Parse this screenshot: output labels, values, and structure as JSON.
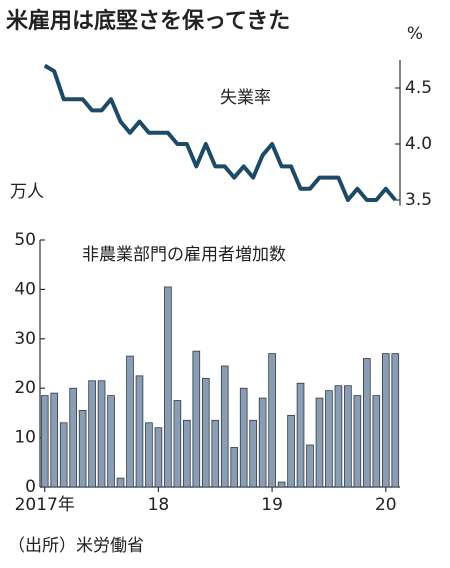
{
  "title": "米雇用は底堅さを保ってきた",
  "source": "（出所）米労働省",
  "chart_data": [
    {
      "type": "line",
      "title": "失業率",
      "ylabel": "%",
      "series": [
        {
          "name": "失業率",
          "color": "#1d4a66",
          "values": [
            4.7,
            4.65,
            4.4,
            4.4,
            4.4,
            4.3,
            4.3,
            4.4,
            4.2,
            4.1,
            4.2,
            4.1,
            4.1,
            4.1,
            4.0,
            4.0,
            3.8,
            4.0,
            3.8,
            3.8,
            3.7,
            3.8,
            3.7,
            3.9,
            4.0,
            3.8,
            3.8,
            3.6,
            3.6,
            3.7,
            3.7,
            3.7,
            3.5,
            3.6,
            3.5,
            3.5,
            3.6,
            3.5
          ]
        }
      ],
      "ylim": [
        3.45,
        4.75
      ],
      "yticks": [
        3.5,
        {
          "value": 4,
          "label": "4.0"
        },
        4.5
      ]
    },
    {
      "type": "bar",
      "title": "非農業部門の雇用者増加数",
      "ylabel": "万人",
      "categories": [
        "2017年",
        null,
        null,
        null,
        null,
        null,
        null,
        null,
        null,
        null,
        null,
        null,
        "18",
        null,
        null,
        null,
        null,
        null,
        null,
        null,
        null,
        null,
        null,
        null,
        "19",
        null,
        null,
        null,
        null,
        null,
        null,
        null,
        null,
        null,
        null,
        null,
        "20",
        null
      ],
      "values": [
        18.5,
        19,
        13,
        20,
        15.5,
        21.5,
        21.5,
        18.5,
        1.8,
        26.5,
        22.5,
        13,
        12,
        40.5,
        17.5,
        13.5,
        27.5,
        22,
        13.5,
        24.5,
        8,
        20,
        13.5,
        18,
        27,
        1,
        14.5,
        21,
        8.5,
        18,
        19.5,
        20.5,
        20.5,
        18.5,
        26,
        18.5,
        27,
        27
      ],
      "color": "#8b9db3",
      "ylim": [
        0,
        50
      ],
      "yticks": [
        0,
        10,
        20,
        30,
        40,
        50
      ]
    }
  ]
}
